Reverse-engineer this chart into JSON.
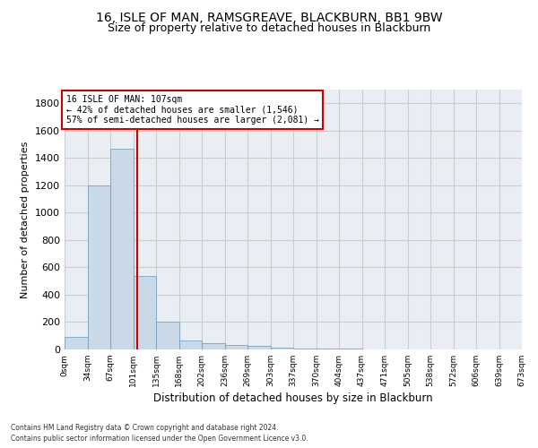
{
  "title1": "16, ISLE OF MAN, RAMSGREAVE, BLACKBURN, BB1 9BW",
  "title2": "Size of property relative to detached houses in Blackburn",
  "xlabel": "Distribution of detached houses by size in Blackburn",
  "ylabel": "Number of detached properties",
  "footnote1": "Contains HM Land Registry data © Crown copyright and database right 2024.",
  "footnote2": "Contains public sector information licensed under the Open Government Licence v3.0.",
  "bar_left_edges": [
    0,
    33.5,
    67,
    100.5,
    134,
    167.5,
    201,
    234.5,
    268,
    301.5,
    335,
    368.5,
    402,
    435.5,
    469,
    502.5,
    536,
    569.5,
    603,
    636.5
  ],
  "bar_heights": [
    90,
    1200,
    1470,
    540,
    205,
    65,
    47,
    35,
    28,
    15,
    8,
    5,
    4,
    3,
    2,
    1,
    1,
    0,
    0,
    0
  ],
  "bar_width": 33.5,
  "bar_color": "#c9d9e8",
  "bar_edgecolor": "#6699bb",
  "property_sqm": 107,
  "vline_color": "#cc0000",
  "annotation_line1": "16 ISLE OF MAN: 107sqm",
  "annotation_line2": "← 42% of detached houses are smaller (1,546)",
  "annotation_line3": "57% of semi-detached houses are larger (2,081) →",
  "annotation_box_color": "#cc0000",
  "ylim": [
    0,
    1900
  ],
  "yticks": [
    0,
    200,
    400,
    600,
    800,
    1000,
    1200,
    1400,
    1600,
    1800
  ],
  "xtick_labels": [
    "0sqm",
    "34sqm",
    "67sqm",
    "101sqm",
    "135sqm",
    "168sqm",
    "202sqm",
    "236sqm",
    "269sqm",
    "303sqm",
    "337sqm",
    "370sqm",
    "404sqm",
    "437sqm",
    "471sqm",
    "505sqm",
    "538sqm",
    "572sqm",
    "606sqm",
    "639sqm",
    "673sqm"
  ],
  "grid_color": "#cccccc",
  "bg_color": "#e8eef4",
  "title_fontsize": 10,
  "subtitle_fontsize": 9
}
